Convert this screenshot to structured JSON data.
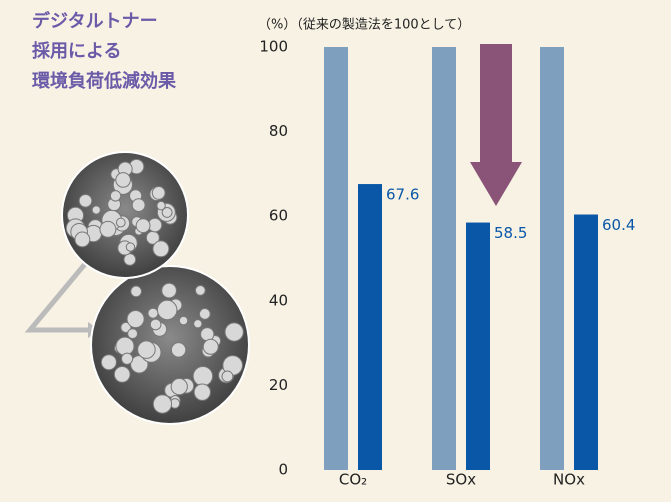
{
  "chart_data": {
    "type": "bar",
    "title": [
      "デジタルトナー",
      "採用による",
      "環境負荷低減効果"
    ],
    "subtitle": "（%）（従来の製造法を100として）",
    "categories": [
      "CO₂",
      "SOx",
      "NOx"
    ],
    "series": [
      {
        "color": "#7f9fbf",
        "values": [
          100,
          100,
          100
        ]
      },
      {
        "color": "#0a57a8",
        "values": [
          67.6,
          58.5,
          60.4
        ]
      }
    ],
    "ylim": [
      0,
      100
    ],
    "yticks": [
      0,
      20,
      40,
      60,
      80,
      100
    ],
    "grid": false
  }
}
